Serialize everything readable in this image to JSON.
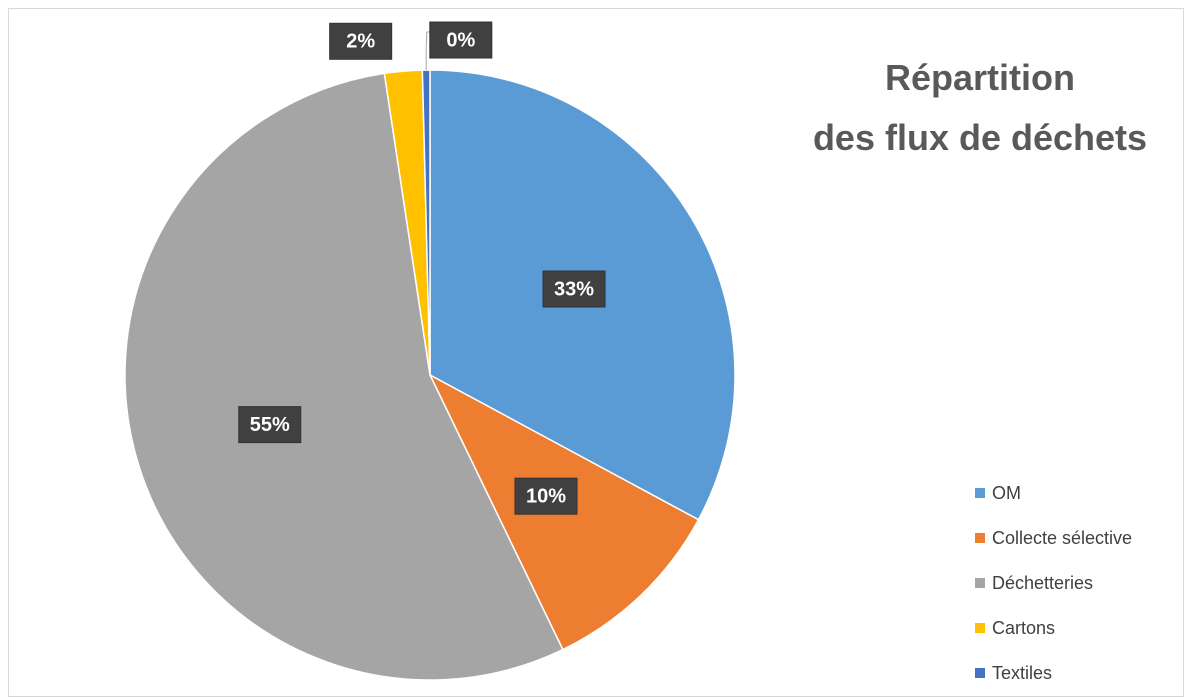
{
  "chart_data": {
    "type": "pie",
    "title": "Répartition\ndes flux de déchets",
    "categories": [
      "OM",
      "Collecte sélective",
      "Déchetteries",
      "Cartons",
      "Textiles"
    ],
    "values": [
      33,
      10,
      55,
      2,
      0.4
    ],
    "value_labels": [
      "33%",
      "10%",
      "55%",
      "2%",
      "0%"
    ],
    "colors": [
      "#5b9bd5",
      "#ed7d31",
      "#a5a5a5",
      "#ffc000",
      "#4472c4"
    ],
    "legend": "right"
  }
}
